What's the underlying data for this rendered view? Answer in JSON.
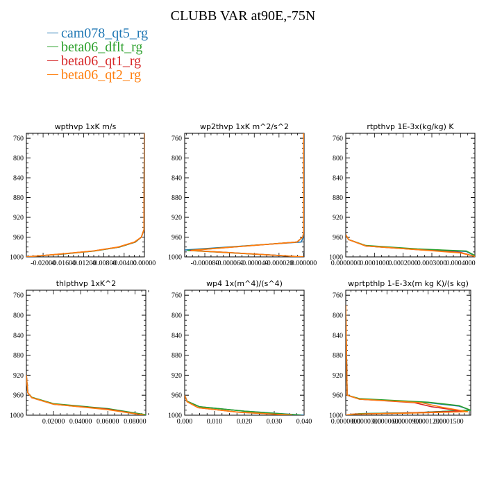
{
  "title": "CLUBB VAR at90E,-75N",
  "legend": [
    {
      "name": "cam078_qt5_rg",
      "color": "#1f77b4"
    },
    {
      "name": "beta06_dflt_rg",
      "color": "#2ca02c"
    },
    {
      "name": "beta06_qt1_rg",
      "color": "#d62728"
    },
    {
      "name": "beta06_qt2_rg",
      "color": "#ff7f0e"
    }
  ],
  "chart_data": [
    {
      "type": "line",
      "title": "wpthvp  1xK m/s",
      "xlim": [
        -0.0233,
        0.0
      ],
      "ylim": [
        1000,
        750
      ],
      "xticks": [
        -0.02,
        -0.016,
        -0.012,
        -0.008,
        -0.004,
        0.0
      ],
      "xticklabels": [
        "-0.02000",
        "-0.01600",
        "-0.01200",
        "-0.00800",
        "-0.00400",
        "0.00000"
      ],
      "yticks": [
        760,
        800,
        840,
        880,
        920,
        960,
        1000
      ],
      "series": [
        {
          "name": "cam078_qt5_rg",
          "x": [
            -0.0233,
            -0.016,
            -0.01,
            -0.005,
            -0.0018,
            -0.0006,
            -0.0001,
            0.0
          ],
          "y": [
            1000,
            994,
            988,
            980,
            970,
            960,
            945,
            750
          ]
        },
        {
          "name": "beta06_dflt_rg",
          "x": [
            -0.0233,
            -0.0158,
            -0.0098,
            -0.0049,
            -0.0018,
            -0.0006,
            -0.0001,
            0.0
          ],
          "y": [
            1000,
            994,
            988,
            980,
            970,
            960,
            945,
            750
          ]
        },
        {
          "name": "beta06_qt1_rg",
          "x": [
            -0.0233,
            -0.0162,
            -0.0101,
            -0.0051,
            -0.0019,
            -0.0006,
            -0.0001,
            0.0
          ],
          "y": [
            1000,
            994,
            988,
            980,
            970,
            960,
            945,
            750
          ]
        },
        {
          "name": "beta06_qt2_rg",
          "x": [
            -0.0233,
            -0.0164,
            -0.0102,
            -0.0052,
            -0.002,
            -0.0006,
            -0.0001,
            0.0
          ],
          "y": [
            1000,
            994,
            988,
            980,
            970,
            960,
            945,
            750
          ]
        }
      ]
    },
    {
      "type": "line",
      "title": "wp2thvp  1xK m^2/s^2",
      "xlim": [
        -9.63e-05,
        3e-07
      ],
      "ylim": [
        1000,
        750
      ],
      "xticks": [
        -8e-05,
        -6e-05,
        -4e-05,
        -2e-05,
        0.0
      ],
      "xticklabels": [
        "-0.000080",
        "-0.000060",
        "-0.000040",
        "-0.000020",
        "0.000000"
      ],
      "yticks": [
        760,
        800,
        840,
        880,
        920,
        960,
        1000
      ],
      "series": [
        {
          "name": "cam078_qt5_rg",
          "x": [
            0.0,
            -9.62e-05,
            -2e-06,
            -3e-07,
            0.0,
            0.0
          ],
          "y": [
            1000,
            986,
            970,
            960,
            950,
            750
          ]
        },
        {
          "name": "beta06_dflt_rg",
          "x": [
            0.0,
            -9.4e-05,
            -5.5e-06,
            -8e-07,
            0.0,
            0.0
          ],
          "y": [
            1000,
            987,
            970,
            960,
            950,
            750
          ]
        },
        {
          "name": "beta06_qt1_rg",
          "x": [
            0.0,
            -9.2e-05,
            -5.5e-06,
            -8e-07,
            0.0,
            0.0
          ],
          "y": [
            1000,
            987,
            970,
            960,
            950,
            750
          ]
        },
        {
          "name": "beta06_qt2_rg",
          "x": [
            0.0,
            -9.1e-05,
            -5.5e-06,
            -8e-07,
            0.0,
            0.0
          ],
          "y": [
            1000,
            987,
            970,
            960,
            950,
            750
          ]
        }
      ]
    },
    {
      "type": "line",
      "title": "rtpthvp  1E-3x(kg/kg) K",
      "xlim": [
        0.0,
        0.00045
      ],
      "ylim": [
        1000,
        750
      ],
      "xticks": [
        0.0,
        0.0001,
        0.0002,
        0.0003,
        0.0004
      ],
      "xticklabels": [
        "0.0000000",
        "0.0001000",
        "0.0002000",
        "0.0003000",
        "0.0004000"
      ],
      "yticks": [
        760,
        800,
        840,
        880,
        920,
        960,
        1000
      ],
      "series": [
        {
          "name": "cam078_qt5_rg",
          "x": [
            0.0,
            1e-05,
            7e-05,
            0.00025,
            0.00042,
            0.00045
          ],
          "y": [
            955,
            965,
            978,
            985,
            989,
            998
          ]
        },
        {
          "name": "beta06_dflt_rg",
          "x": [
            0.0,
            1e-05,
            7e-05,
            0.00025,
            0.00042,
            0.00045
          ],
          "y": [
            955,
            965,
            977,
            984,
            988,
            997
          ]
        },
        {
          "name": "beta06_qt1_rg",
          "x": [
            0.0,
            1e-05,
            7e-05,
            0.00024,
            0.0004,
            0.00045
          ],
          "y": [
            955,
            965,
            978,
            985,
            991,
            999
          ]
        },
        {
          "name": "beta06_qt2_rg",
          "x": [
            0.0,
            1e-05,
            7e-05,
            0.00024,
            0.0004,
            0.00045
          ],
          "y": [
            955,
            965,
            978,
            985,
            992,
            999
          ]
        }
      ]
    },
    {
      "type": "line",
      "title": "thlpthvp  1xK^2",
      "xlim": [
        0.0,
        0.088
      ],
      "ylim": [
        1000,
        750
      ],
      "xticks": [
        0.02,
        0.04,
        0.06,
        0.08
      ],
      "xticklabels": [
        "0.02000",
        "0.04000",
        "0.06000",
        "0.08000"
      ],
      "yticks": [
        760,
        800,
        840,
        880,
        920,
        960,
        1000
      ],
      "series": [
        {
          "name": "cam078_qt5_rg",
          "x": [
            0.0,
            0.001,
            0.004,
            0.02,
            0.06,
            0.088
          ],
          "y": [
            920,
            955,
            965,
            978,
            988,
            1000
          ]
        },
        {
          "name": "beta06_dflt_rg",
          "x": [
            0.0,
            0.001,
            0.004,
            0.02,
            0.06,
            0.088
          ],
          "y": [
            920,
            955,
            964,
            977,
            987,
            999
          ]
        },
        {
          "name": "beta06_qt1_rg",
          "x": [
            0.0,
            0.001,
            0.004,
            0.02,
            0.06,
            0.087
          ],
          "y": [
            920,
            955,
            965,
            978,
            988,
            1000
          ]
        },
        {
          "name": "beta06_qt2_rg",
          "x": [
            0.0,
            0.001,
            0.004,
            0.02,
            0.06,
            0.087
          ],
          "y": [
            920,
            955,
            965,
            978,
            989,
            1000
          ]
        }
      ]
    },
    {
      "type": "line",
      "title": "wp4  1x(m^4)/(s^4)",
      "xlim": [
        0.0,
        0.04
      ],
      "ylim": [
        1000,
        750
      ],
      "xticks": [
        0.0,
        0.01,
        0.02,
        0.03,
        0.04
      ],
      "xticklabels": [
        "0.000",
        "0.010",
        "0.020",
        "0.030",
        "0.040"
      ],
      "yticks": [
        760,
        800,
        840,
        880,
        920,
        960,
        1000
      ],
      "series": [
        {
          "name": "cam078_qt5_rg",
          "x": [
            0.0,
            0.0008,
            0.005,
            0.02,
            0.04
          ],
          "y": [
            960,
            972,
            983,
            992,
            1000
          ]
        },
        {
          "name": "beta06_dflt_rg",
          "x": [
            0.0,
            0.0008,
            0.005,
            0.02,
            0.039
          ],
          "y": [
            960,
            972,
            983,
            992,
            1000
          ]
        },
        {
          "name": "beta06_qt1_rg",
          "x": [
            0.0,
            0.0008,
            0.0045,
            0.018,
            0.036
          ],
          "y": [
            960,
            973,
            985,
            994,
            1000
          ]
        },
        {
          "name": "beta06_qt2_rg",
          "x": [
            0.0,
            0.0008,
            0.0045,
            0.018,
            0.036
          ],
          "y": [
            960,
            973,
            985,
            994,
            1000
          ]
        }
      ]
    },
    {
      "type": "line",
      "title": "wprtpthlp  1-E-3x(m kg K)/(s kg)",
      "xlim": [
        0.0,
        0.000182
      ],
      "ylim": [
        1000,
        750
      ],
      "xticks": [
        0.0,
        3e-05,
        6e-05,
        9e-05,
        0.00012,
        0.00015
      ],
      "xticklabels": [
        "0.0000000",
        "0.0000300",
        "0.0000600",
        "0.0000900",
        "0.0001200",
        "0.0001500"
      ],
      "yticks": [
        760,
        800,
        840,
        880,
        920,
        960,
        1000
      ],
      "series": [
        {
          "name": "cam078_qt5_rg",
          "x": [
            0.0,
            2e-06,
            2e-05,
            0.00012,
            0.000165,
            0.000182,
            0.0001,
            2e-05,
            0.0
          ],
          "y": [
            780,
            960,
            968,
            975,
            982,
            990,
            995,
            997,
            1000
          ]
        },
        {
          "name": "beta06_dflt_rg",
          "x": [
            0.0,
            2e-06,
            2e-05,
            0.00012,
            0.000165,
            0.000182,
            0.0001,
            2e-05,
            0.0
          ],
          "y": [
            780,
            960,
            967,
            974,
            981,
            990,
            995,
            997,
            1000
          ]
        },
        {
          "name": "beta06_qt1_rg",
          "x": [
            0.0,
            2e-06,
            2e-05,
            0.0001,
            0.000125,
            0.00017,
            8e-05,
            1e-05,
            0.0
          ],
          "y": [
            780,
            960,
            968,
            975,
            983,
            992,
            996,
            998,
            1000
          ]
        },
        {
          "name": "beta06_qt2_rg",
          "x": [
            0.0,
            2e-06,
            2e-05,
            0.00011,
            0.00014,
            0.000178,
            9e-05,
            1e-05,
            0.0
          ],
          "y": [
            780,
            960,
            968,
            975,
            984,
            993,
            996,
            998,
            1000
          ]
        }
      ]
    }
  ]
}
